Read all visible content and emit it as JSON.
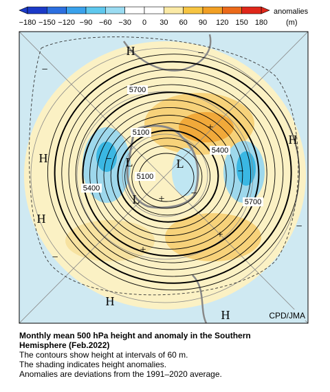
{
  "colorbar": {
    "ticks": [
      "−180",
      "−150",
      "−120",
      "−90",
      "−60",
      "−30",
      "0",
      "30",
      "60",
      "90",
      "120",
      "150",
      "180"
    ],
    "unit_label": "anomalies",
    "unit": "(m)"
  },
  "map": {
    "symbols": [
      "H",
      "H",
      "H",
      "H",
      "H",
      "H",
      "L",
      "L",
      "L",
      "+",
      "+",
      "+",
      "+",
      "−",
      "−",
      "−",
      "−",
      "−",
      "−",
      "−"
    ],
    "contour_labels": [
      "5700",
      "5100",
      "5400",
      "5100",
      "5400",
      "5700"
    ],
    "credit": "CPD/JMA"
  },
  "caption": {
    "title_line1": "Monthly mean 500 hPa height and anomaly in the Southern",
    "title_line2": "Hemisphere (Feb.2022)",
    "lines": [
      "The contours show height at intervals of 60 m.",
      "The shading indicates height anomalies.",
      "Anomalies are deviations from the 1991–2020 average."
    ]
  }
}
